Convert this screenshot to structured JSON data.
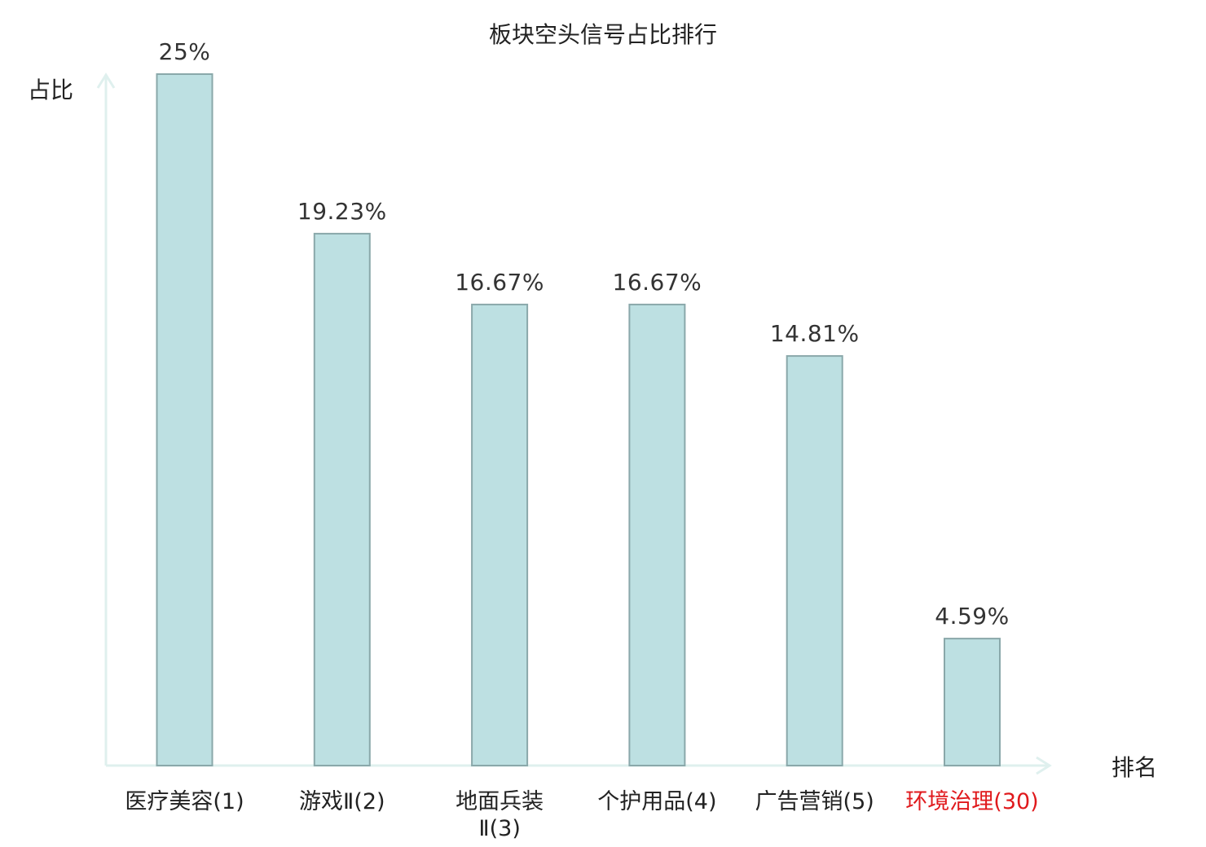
{
  "chart_data": {
    "type": "bar",
    "title": "板块空头信号占比排行",
    "ylabel": "占比",
    "xlabel": "排名",
    "ylim": [
      0,
      25
    ],
    "grid": false,
    "categories": [
      [
        "医疗美容(1)"
      ],
      [
        "游戏Ⅱ(2)"
      ],
      [
        "地面兵装",
        "Ⅱ(3)"
      ],
      [
        "个护用品(4)"
      ],
      [
        "广告营销(5)"
      ],
      [
        "环境治理(30)"
      ]
    ],
    "values": [
      25,
      19.23,
      16.67,
      16.67,
      14.81,
      4.59
    ],
    "value_labels": [
      "25%",
      "19.23%",
      "16.67%",
      "16.67%",
      "14.81%",
      "4.59%"
    ],
    "highlight_index": 5
  },
  "colors": {
    "bar_fill": "#bde0e2",
    "bar_stroke": "#8aa8aa",
    "axis": "#dff0ee",
    "highlight": "#e0191c"
  }
}
